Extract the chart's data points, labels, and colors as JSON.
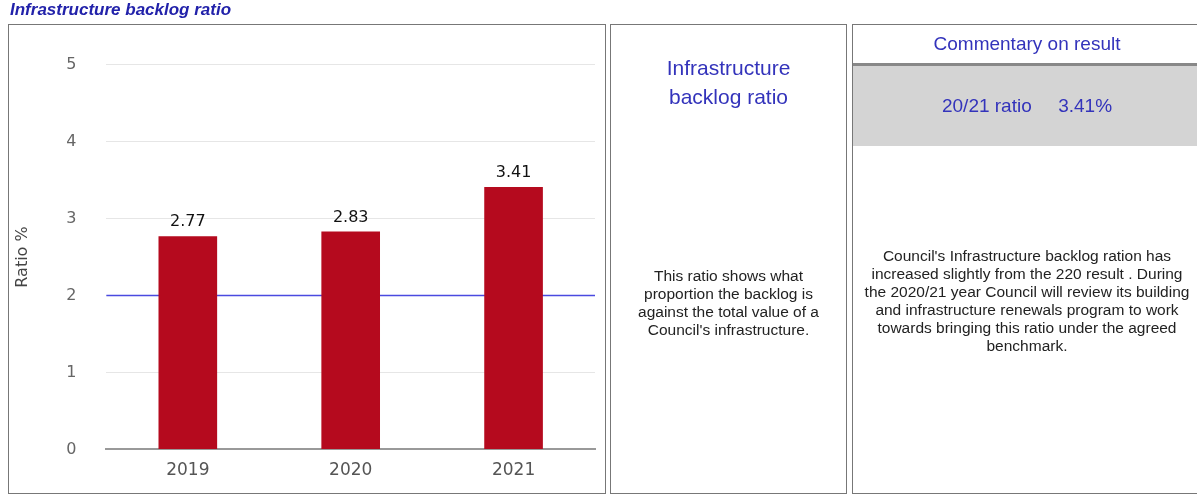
{
  "chart_data": [
    {
      "type": "bar",
      "title": "Infrastructure backlog ratio",
      "ylabel": "Ratio %",
      "categories": [
        "2019",
        "2020",
        "2021"
      ],
      "values": [
        2.77,
        2.83,
        3.41
      ],
      "color": "#b50a1e",
      "ylim": [
        0,
        5
      ],
      "yticks": [
        0,
        1,
        2,
        3,
        4,
        5
      ],
      "grid": "y",
      "data_labels": true,
      "legend": false,
      "ref_lines": [
        {
          "axis": "y",
          "value": 2,
          "color": "#4a4ae0"
        }
      ]
    },
    {
      "type": "other",
      "title": "Infrastructure backlog ratio",
      "annotations": [
        "This ratio shows what proportion the backlog is against the total value of a Council's infrastructure."
      ]
    },
    {
      "type": "other",
      "title": "Commentary on result",
      "subtitle": "20/21 ratio     3.41%",
      "annotations": [
        "Council's Infrastructure backlog ration has increased slightly from the 220 result . During the 2020/21 year Council will review its building and infrastructure renewals program to work towards bringing this ratio under the agreed benchmark."
      ]
    }
  ]
}
